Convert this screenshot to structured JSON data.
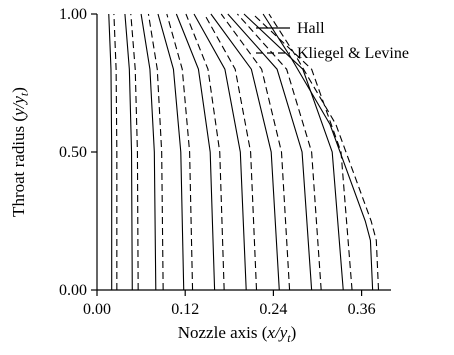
{
  "chart_data": {
    "type": "line",
    "xlabel": "Nozzle axis (x/yₜ)",
    "xlabel_parts": {
      "pre": "Nozzle axis (",
      "var": "x/y",
      "sub": "t",
      "post": ")"
    },
    "ylabel": "Throat radius (y/yₜ)",
    "ylabel_parts": {
      "pre": "Throat radius (",
      "var": "y/y",
      "sub": "t",
      "post": ")"
    },
    "xlim": [
      0.0,
      0.4
    ],
    "ylim": [
      0.0,
      1.0
    ],
    "xticks": [
      0.0,
      0.12,
      0.24,
      0.36
    ],
    "xtick_labels": [
      "0.00",
      "0.12",
      "0.24",
      "0.36"
    ],
    "yticks": [
      0.0,
      0.5,
      1.0
    ],
    "ytick_labels": [
      "0.00",
      "0.50",
      "1.00"
    ],
    "grid": false,
    "legend_position": "top-right",
    "series": [
      {
        "name": "Hall",
        "style": "solid",
        "lines": [
          [
            [
              0.02,
              0.0
            ],
            [
              0.02,
              0.5
            ],
            [
              0.019,
              0.8
            ],
            [
              0.016,
              1.0
            ]
          ],
          [
            [
              0.048,
              0.0
            ],
            [
              0.047,
              0.5
            ],
            [
              0.044,
              0.8
            ],
            [
              0.038,
              1.0
            ]
          ],
          [
            [
              0.08,
              0.0
            ],
            [
              0.078,
              0.5
            ],
            [
              0.072,
              0.8
            ],
            [
              0.06,
              1.0
            ]
          ],
          [
            [
              0.118,
              0.0
            ],
            [
              0.114,
              0.5
            ],
            [
              0.104,
              0.8
            ],
            [
              0.083,
              1.0
            ]
          ],
          [
            [
              0.16,
              0.0
            ],
            [
              0.154,
              0.5
            ],
            [
              0.138,
              0.8
            ],
            [
              0.108,
              1.0
            ]
          ],
          [
            [
              0.203,
              0.0
            ],
            [
              0.195,
              0.5
            ],
            [
              0.174,
              0.8
            ],
            [
              0.132,
              1.0
            ]
          ],
          [
            [
              0.248,
              0.0
            ],
            [
              0.237,
              0.5
            ],
            [
              0.21,
              0.8
            ],
            [
              0.155,
              1.0
            ]
          ],
          [
            [
              0.292,
              0.0
            ],
            [
              0.279,
              0.5
            ],
            [
              0.245,
              0.8
            ],
            [
              0.178,
              1.0
            ]
          ],
          [
            [
              0.335,
              0.0
            ],
            [
              0.32,
              0.5
            ],
            [
              0.28,
              0.8
            ],
            [
              0.2,
              1.0
            ]
          ],
          [
            [
              0.375,
              0.0
            ],
            [
              0.372,
              0.18
            ],
            [
              0.365,
              0.25
            ],
            [
              0.317,
              0.6
            ],
            [
              0.262,
              0.85
            ],
            [
              0.226,
              1.0
            ]
          ]
        ]
      },
      {
        "name": "Kliegel & Levine",
        "style": "dashed",
        "lines": [
          [
            [
              0.027,
              0.0
            ],
            [
              0.027,
              0.5
            ],
            [
              0.026,
              0.8
            ],
            [
              0.023,
              1.0
            ]
          ],
          [
            [
              0.056,
              0.0
            ],
            [
              0.055,
              0.5
            ],
            [
              0.052,
              0.8
            ],
            [
              0.046,
              1.0
            ]
          ],
          [
            [
              0.09,
              0.0
            ],
            [
              0.088,
              0.5
            ],
            [
              0.082,
              0.8
            ],
            [
              0.07,
              1.0
            ]
          ],
          [
            [
              0.13,
              0.0
            ],
            [
              0.126,
              0.5
            ],
            [
              0.116,
              0.8
            ],
            [
              0.095,
              1.0
            ]
          ],
          [
            [
              0.173,
              0.0
            ],
            [
              0.167,
              0.5
            ],
            [
              0.151,
              0.8
            ],
            [
              0.121,
              1.0
            ]
          ],
          [
            [
              0.217,
              0.0
            ],
            [
              0.209,
              0.5
            ],
            [
              0.188,
              0.8
            ],
            [
              0.146,
              1.0
            ]
          ],
          [
            [
              0.262,
              0.0
            ],
            [
              0.251,
              0.5
            ],
            [
              0.224,
              0.8
            ],
            [
              0.169,
              1.0
            ]
          ],
          [
            [
              0.305,
              0.0
            ],
            [
              0.292,
              0.5
            ],
            [
              0.258,
              0.8
            ],
            [
              0.191,
              1.0
            ]
          ],
          [
            [
              0.347,
              0.0
            ],
            [
              0.332,
              0.5
            ],
            [
              0.292,
              0.8
            ],
            [
              0.212,
              1.0
            ]
          ],
          [
            [
              0.383,
              0.0
            ],
            [
              0.38,
              0.18
            ],
            [
              0.373,
              0.25
            ],
            [
              0.325,
              0.6
            ],
            [
              0.27,
              0.85
            ],
            [
              0.234,
              1.0
            ]
          ]
        ]
      }
    ]
  }
}
